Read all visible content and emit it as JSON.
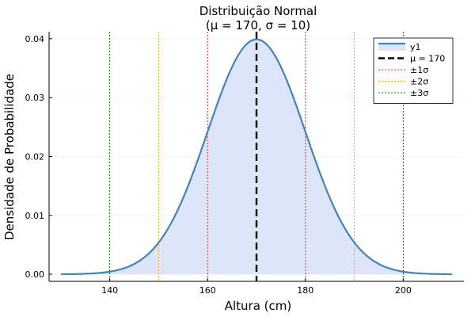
{
  "chart_data": {
    "type": "line",
    "title_line1": "Distribuição Normal",
    "title_line2": "(μ = 170, σ = 10)",
    "xlabel": "Altura (cm)",
    "ylabel": "Densidade de Probabilidade",
    "xlim": [
      127.6,
      212.4
    ],
    "ylim": [
      -0.0012,
      0.0412
    ],
    "xticks": [
      140,
      160,
      180,
      200
    ],
    "xtick_labels": [
      "140",
      "160",
      "180",
      "200"
    ],
    "yticks": [
      0.0,
      0.01,
      0.02,
      0.03,
      0.04
    ],
    "ytick_labels": [
      "0.00",
      "0.01",
      "0.02",
      "0.03",
      "0.04"
    ],
    "grid": true,
    "legend_position": "top-right",
    "distribution": {
      "mean": 170,
      "sd": 10,
      "x_start": 130,
      "x_end": 210
    },
    "series": [
      {
        "name": "y1",
        "kind": "curve",
        "color": "#4682b4",
        "fill": "#dce6f8"
      },
      {
        "name": "μ = 170",
        "kind": "vline",
        "x": [
          170
        ],
        "color": "#000000",
        "dash": "dashed"
      },
      {
        "name": "±1σ",
        "kind": "vline",
        "x": [
          160,
          180
        ],
        "color": "#e8202a",
        "dash": "dotted"
      },
      {
        "name": "±2σ",
        "kind": "vline",
        "x": [
          150,
          190
        ],
        "color": "#ffa500",
        "dash": "dotted"
      },
      {
        "name": "±3σ",
        "kind": "vline",
        "x": [
          140,
          200
        ],
        "color": "#008000",
        "dash": "dotted"
      }
    ]
  }
}
